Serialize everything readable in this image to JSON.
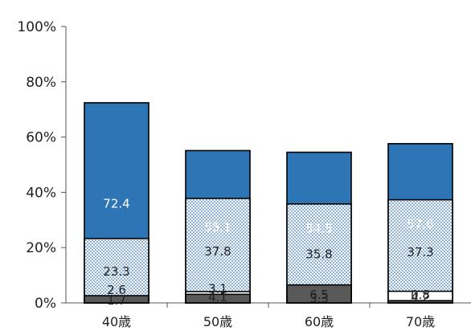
{
  "chart_data": {
    "type": "bar",
    "stacked": "percent",
    "categories": [
      "40歳",
      "50歳",
      "60歳",
      "70歳"
    ],
    "series": [
      {
        "values": [
          72.4,
          55.1,
          54.5,
          57.6
        ],
        "color": "#2e75b6",
        "fill": "solid"
      },
      {
        "values": [
          23.3,
          37.8,
          35.8,
          37.3
        ],
        "color": "#2e75b6",
        "fill": "dotted"
      },
      {
        "values": [
          1.7,
          4.1,
          3.3,
          4.2
        ],
        "color": "#ffffff",
        "fill": "solid"
      },
      {
        "values": [
          2.6,
          3.1,
          6.5,
          0.8
        ],
        "color": "#595959",
        "fill": "solid"
      }
    ],
    "y_ticks": [
      "0%",
      "20%",
      "40%",
      "60%",
      "80%",
      "100%"
    ],
    "ylim": [
      0,
      100
    ],
    "grid": false,
    "legend": "none",
    "title": "",
    "xlabel": "",
    "ylabel": ""
  }
}
